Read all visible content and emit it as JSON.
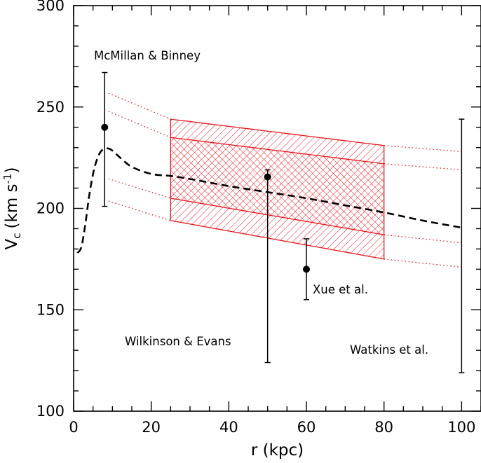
{
  "chart_data": {
    "type": "line",
    "title": "",
    "xlabel": "r (kpc)",
    "ylabel": "V",
    "ylabel_sub": "c",
    "ylabel_units": "(km s",
    "ylabel_sup": "-1",
    "ylabel_close": ")",
    "xlim": [
      0,
      105
    ],
    "ylim": [
      100,
      300
    ],
    "xticks": [
      0,
      20,
      40,
      60,
      80,
      100
    ],
    "yticks": [
      100,
      150,
      200,
      250,
      300
    ],
    "colors": {
      "band": "#e8141c",
      "model": "#000000",
      "points": "#000000"
    },
    "model_curve": {
      "name": "model rotation curve (dashed)",
      "x": [
        1,
        2,
        3,
        4,
        5,
        6,
        7,
        8,
        9,
        10,
        12,
        15,
        20,
        25,
        30,
        40,
        50,
        60,
        70,
        80,
        90,
        100
      ],
      "y": [
        178,
        181,
        192,
        206,
        217,
        224,
        228,
        229.5,
        229.5,
        228.5,
        225,
        220.5,
        217,
        216,
        214.5,
        211,
        208,
        205,
        201.5,
        198,
        194,
        190.5
      ]
    },
    "bands": {
      "x_solid_range": [
        25,
        80
      ],
      "x_dotted_range": [
        9,
        100
      ],
      "anchor_x": [
        10,
        25,
        80,
        100
      ],
      "curves": [
        {
          "name": "outer-upper",
          "y": [
            256,
            244,
            231,
            228
          ]
        },
        {
          "name": "inner-upper",
          "y": [
            247,
            235,
            222,
            219
          ]
        },
        {
          "name": "inner-lower",
          "y": [
            214,
            205,
            187,
            183
          ]
        },
        {
          "name": "outer-lower",
          "y": [
            203,
            194,
            175,
            171
          ]
        }
      ]
    },
    "points": [
      {
        "label": "McMillan & Binney",
        "x": 8,
        "y": 240,
        "yerr_low": 201,
        "yerr_high": 267,
        "marker": true
      },
      {
        "label": "Wilkinson & Evans",
        "x": 50,
        "y": 215.5,
        "yerr_low": 124,
        "yerr_high": 219,
        "marker": true
      },
      {
        "label": "Xue et al.",
        "x": 60,
        "y": 170,
        "yerr_low": 155,
        "yerr_high": 185,
        "marker": true
      },
      {
        "label": "Watkins et al.",
        "x": 100,
        "y": null,
        "yerr_low": 119,
        "yerr_high": 244,
        "marker": false
      }
    ],
    "annotations": {
      "mcmillan": "McMillan & Binney",
      "wilkinson": "Wilkinson & Evans",
      "xue": "Xue et al.",
      "watkins": "Watkins et al."
    }
  }
}
